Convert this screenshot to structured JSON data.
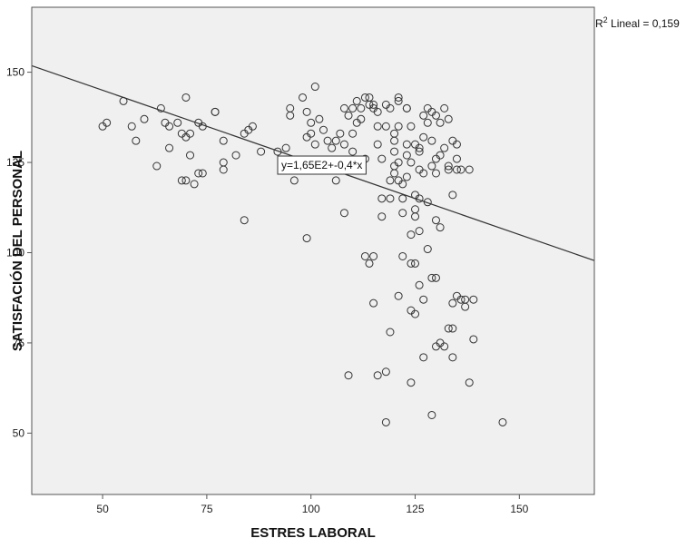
{
  "chart_data": {
    "type": "scatter",
    "xlabel": "ESTRES LABORAL",
    "ylabel": "SATISFACIÓN DEL PERSONAL",
    "xlim": [
      33,
      168
    ],
    "ylim": [
      33,
      168
    ],
    "x_ticks": [
      50,
      75,
      100,
      125,
      150
    ],
    "y_ticks": [
      50,
      75,
      100,
      125,
      150
    ],
    "grid": false,
    "background_color": "#f0f0f0",
    "marker_color": "#333333",
    "line_color": "#333333",
    "r2_label": {
      "prefix": "R",
      "superscript": "2",
      "text": " Lineal = 0,159"
    },
    "equation_label": "y=1,65E2+-0,4*x",
    "fit_line": {
      "intercept": 165,
      "slope": -0.4
    },
    "points": [
      [
        50,
        135
      ],
      [
        51,
        136
      ],
      [
        55,
        142
      ],
      [
        57,
        135
      ],
      [
        58,
        131
      ],
      [
        60,
        137
      ],
      [
        63,
        124
      ],
      [
        64,
        140
      ],
      [
        65,
        136
      ],
      [
        66,
        129
      ],
      [
        66,
        135
      ],
      [
        68,
        136
      ],
      [
        69,
        120
      ],
      [
        69,
        133
      ],
      [
        70,
        143
      ],
      [
        70,
        132
      ],
      [
        70,
        120
      ],
      [
        71,
        133
      ],
      [
        71,
        127
      ],
      [
        72,
        119
      ],
      [
        73,
        122
      ],
      [
        73,
        136
      ],
      [
        74,
        122
      ],
      [
        74,
        135
      ],
      [
        77,
        139
      ],
      [
        77,
        139
      ],
      [
        79,
        125
      ],
      [
        79,
        123
      ],
      [
        79,
        131
      ],
      [
        82,
        127
      ],
      [
        84,
        109
      ],
      [
        84,
        133
      ],
      [
        85,
        134
      ],
      [
        86,
        135
      ],
      [
        88,
        128
      ],
      [
        92,
        128
      ],
      [
        93,
        125
      ],
      [
        94,
        129
      ],
      [
        95,
        140
      ],
      [
        95,
        138
      ],
      [
        96,
        120
      ],
      [
        98,
        143
      ],
      [
        99,
        132
      ],
      [
        99,
        139
      ],
      [
        99,
        104
      ],
      [
        100,
        133
      ],
      [
        100,
        136
      ],
      [
        101,
        146
      ],
      [
        101,
        130
      ],
      [
        102,
        137
      ],
      [
        103,
        134
      ],
      [
        104,
        131
      ],
      [
        105,
        129
      ],
      [
        106,
        131
      ],
      [
        106,
        120
      ],
      [
        107,
        133
      ],
      [
        108,
        140
      ],
      [
        108,
        130
      ],
      [
        108,
        111
      ],
      [
        109,
        138
      ],
      [
        109,
        66
      ],
      [
        110,
        133
      ],
      [
        110,
        140
      ],
      [
        110,
        128
      ],
      [
        111,
        142
      ],
      [
        111,
        136
      ],
      [
        112,
        140
      ],
      [
        112,
        137
      ],
      [
        113,
        143
      ],
      [
        113,
        126
      ],
      [
        113,
        99
      ],
      [
        114,
        143
      ],
      [
        114,
        141
      ],
      [
        114,
        97
      ],
      [
        115,
        140
      ],
      [
        115,
        141
      ],
      [
        115,
        99
      ],
      [
        115,
        86
      ],
      [
        116,
        139
      ],
      [
        116,
        135
      ],
      [
        116,
        130
      ],
      [
        116,
        66
      ],
      [
        117,
        126
      ],
      [
        117,
        110
      ],
      [
        117,
        115
      ],
      [
        118,
        135
      ],
      [
        118,
        141
      ],
      [
        118,
        53
      ],
      [
        118,
        67
      ],
      [
        119,
        140
      ],
      [
        119,
        120
      ],
      [
        119,
        78
      ],
      [
        119,
        115
      ],
      [
        120,
        133
      ],
      [
        120,
        131
      ],
      [
        120,
        128
      ],
      [
        120,
        124
      ],
      [
        120,
        122
      ],
      [
        121,
        143
      ],
      [
        121,
        142
      ],
      [
        121,
        135
      ],
      [
        121,
        125
      ],
      [
        121,
        120
      ],
      [
        121,
        88
      ],
      [
        122,
        119
      ],
      [
        122,
        115
      ],
      [
        122,
        111
      ],
      [
        123,
        121
      ],
      [
        123,
        130
      ],
      [
        123,
        127
      ],
      [
        123,
        140
      ],
      [
        123,
        140
      ],
      [
        124,
        125
      ],
      [
        124,
        135
      ],
      [
        124,
        105
      ],
      [
        124,
        97
      ],
      [
        124,
        84
      ],
      [
        124,
        64
      ],
      [
        125,
        130
      ],
      [
        125,
        116
      ],
      [
        125,
        112
      ],
      [
        125,
        110
      ],
      [
        125,
        97
      ],
      [
        125,
        83
      ],
      [
        126,
        129
      ],
      [
        126,
        128
      ],
      [
        126,
        123
      ],
      [
        126,
        115
      ],
      [
        126,
        106
      ],
      [
        126,
        91
      ],
      [
        127,
        138
      ],
      [
        127,
        132
      ],
      [
        127,
        122
      ],
      [
        127,
        87
      ],
      [
        127,
        71
      ],
      [
        128,
        140
      ],
      [
        128,
        136
      ],
      [
        128,
        114
      ],
      [
        128,
        101
      ],
      [
        129,
        139
      ],
      [
        129,
        131
      ],
      [
        129,
        124
      ],
      [
        129,
        93
      ],
      [
        129,
        55
      ],
      [
        130,
        138
      ],
      [
        130,
        126
      ],
      [
        130,
        122
      ],
      [
        130,
        109
      ],
      [
        130,
        93
      ],
      [
        130,
        74
      ],
      [
        131,
        136
      ],
      [
        131,
        127
      ],
      [
        131,
        107
      ],
      [
        131,
        75
      ],
      [
        132,
        140
      ],
      [
        132,
        129
      ],
      [
        132,
        74
      ],
      [
        133,
        137
      ],
      [
        133,
        124
      ],
      [
        133,
        123
      ],
      [
        133,
        79
      ],
      [
        134,
        131
      ],
      [
        134,
        116
      ],
      [
        134,
        86
      ],
      [
        134,
        79
      ],
      [
        134,
        71
      ],
      [
        135,
        130
      ],
      [
        135,
        126
      ],
      [
        135,
        123
      ],
      [
        135,
        88
      ],
      [
        136,
        123
      ],
      [
        136,
        87
      ],
      [
        137,
        85
      ],
      [
        137,
        87
      ],
      [
        138,
        123
      ],
      [
        138,
        64
      ],
      [
        139,
        87
      ],
      [
        139,
        76
      ],
      [
        146,
        53
      ],
      [
        122,
        99
      ]
    ]
  }
}
